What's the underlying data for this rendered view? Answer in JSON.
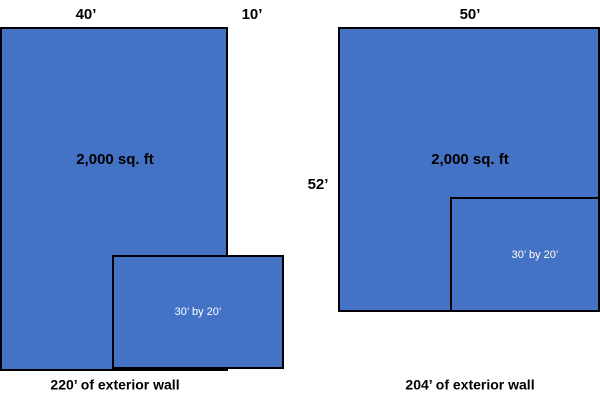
{
  "plans": [
    {
      "width_label": "40’",
      "extra_label": "10’",
      "area_label": "2,000 sq. ft",
      "inset_label": "30’ by 20’",
      "caption": "220’ of exterior wall"
    },
    {
      "width_label": "50’",
      "height_label": "52’",
      "area_label": "2,000 sq. ft",
      "inset_label": "30’ by 20’",
      "caption": "204’ of exterior wall"
    }
  ]
}
